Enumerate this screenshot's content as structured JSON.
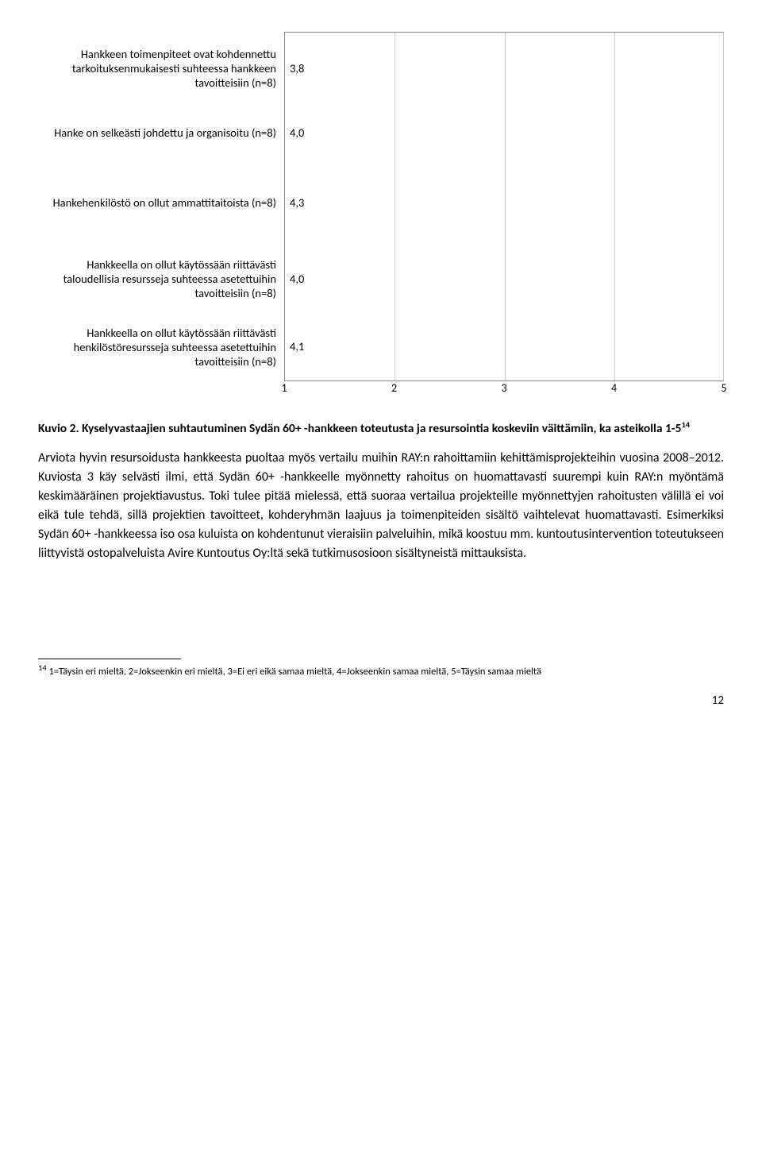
{
  "chart": {
    "type": "bar-horizontal",
    "xlim": [
      1,
      5
    ],
    "xticks": [
      1,
      2,
      3,
      4,
      5
    ],
    "bar_color": "#4f81bd",
    "grid_color": "#cfcfcf",
    "axis_color": "#888888",
    "background_color": "#ffffff",
    "label_fontsize": 14.5,
    "value_fontsize": 14.5,
    "tick_fontsize": 14,
    "bars": [
      {
        "label": "Hankkeen toimenpiteet ovat kohdennettu tarkoituksenmukaisesti suhteessa hankkeen tavoitteisiin (n=8)",
        "value": 3.8,
        "display_value": "3,8"
      },
      {
        "label": "Hanke on selkeästi johdettu ja organisoitu (n=8)",
        "value": 4.0,
        "display_value": "4,0"
      },
      {
        "label": "Hankehenkilöstö on ollut ammattitaitoista (n=8)",
        "value": 4.3,
        "display_value": "4,3"
      },
      {
        "label": "Hankkeella on ollut käytössään riittävästi taloudellisia resursseja suhteessa asetettuihin tavoitteisiin (n=8)",
        "value": 4.0,
        "display_value": "4,0"
      },
      {
        "label": "Hankkeella on ollut käytössään riittävästi henkilöstöresursseja suhteessa asetettuihin tavoitteisiin (n=8)",
        "value": 4.1,
        "display_value": "4,1"
      }
    ]
  },
  "caption": {
    "prefix": "Kuvio 2. Kyselyvastaajien suhtautuminen Sydän 60+ -hankkeen toteutusta ja resursointia koskeviin väittämiin, ka asteikolla 1-5",
    "sup": "14"
  },
  "body": {
    "para": "Arviota hyvin resursoidusta hankkeesta puoltaa myös vertailu muihin RAY:n rahoittamiin kehittämisprojekteihin vuosina 2008–2012. Kuviosta 3 käy selvästi ilmi, että Sydän 60+ -hankkeelle myönnetty rahoitus on huomattavasti suurempi kuin RAY:n myöntämä keskimääräinen projektiavustus. Toki tulee pitää mielessä, että suoraa vertailua projekteille myönnettyjen rahoitusten välillä ei voi eikä tule tehdä, sillä projektien tavoitteet, kohderyhmän laajuus ja toimenpiteiden sisältö vaihtelevat huomattavasti. Esimerkiksi Sydän 60+ -hankkeessa iso osa kuluista on kohdentunut vieraisiin palveluihin, mikä koostuu mm. kuntoutusintervention toteutukseen liittyvistä ostopalveluista Avire Kuntoutus Oy:ltä sekä tutkimusosioon sisältyneistä mittauksista."
  },
  "footnote": {
    "sup": "14",
    "text": " 1=Täysin eri mieltä, 2=Jokseenkin eri mieltä, 3=Ei eri eikä samaa mieltä, 4=Jokseenkin samaa mieltä, 5=Täysin samaa mieltä"
  },
  "page_number": "12"
}
